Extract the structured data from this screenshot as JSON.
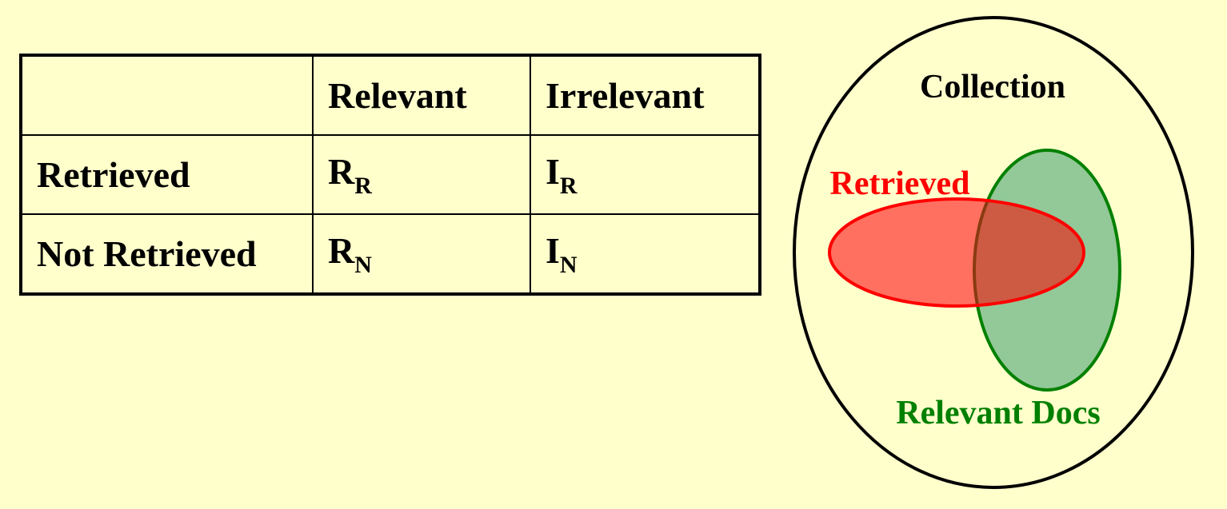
{
  "table": {
    "headers": [
      "",
      "Relevant",
      "Irrelevant"
    ],
    "rows": [
      {
        "label": "Retrieved",
        "cells": [
          {
            "main": "R",
            "sub": "R"
          },
          {
            "main": "I",
            "sub": "R"
          }
        ]
      },
      {
        "label": "Not Retrieved",
        "cells": [
          {
            "main": "R",
            "sub": "N"
          },
          {
            "main": "I",
            "sub": "N"
          }
        ]
      }
    ]
  },
  "venn": {
    "collection_label": "Collection",
    "retrieved_label": "Retrieved",
    "relevant_label": "Relevant Docs",
    "colors": {
      "retrieved": "#ff0000",
      "retrieved_fill": "#ff7060",
      "relevant": "#008000",
      "relevant_fill": "#93c898",
      "overlap_fill": "#cd5b44"
    }
  }
}
